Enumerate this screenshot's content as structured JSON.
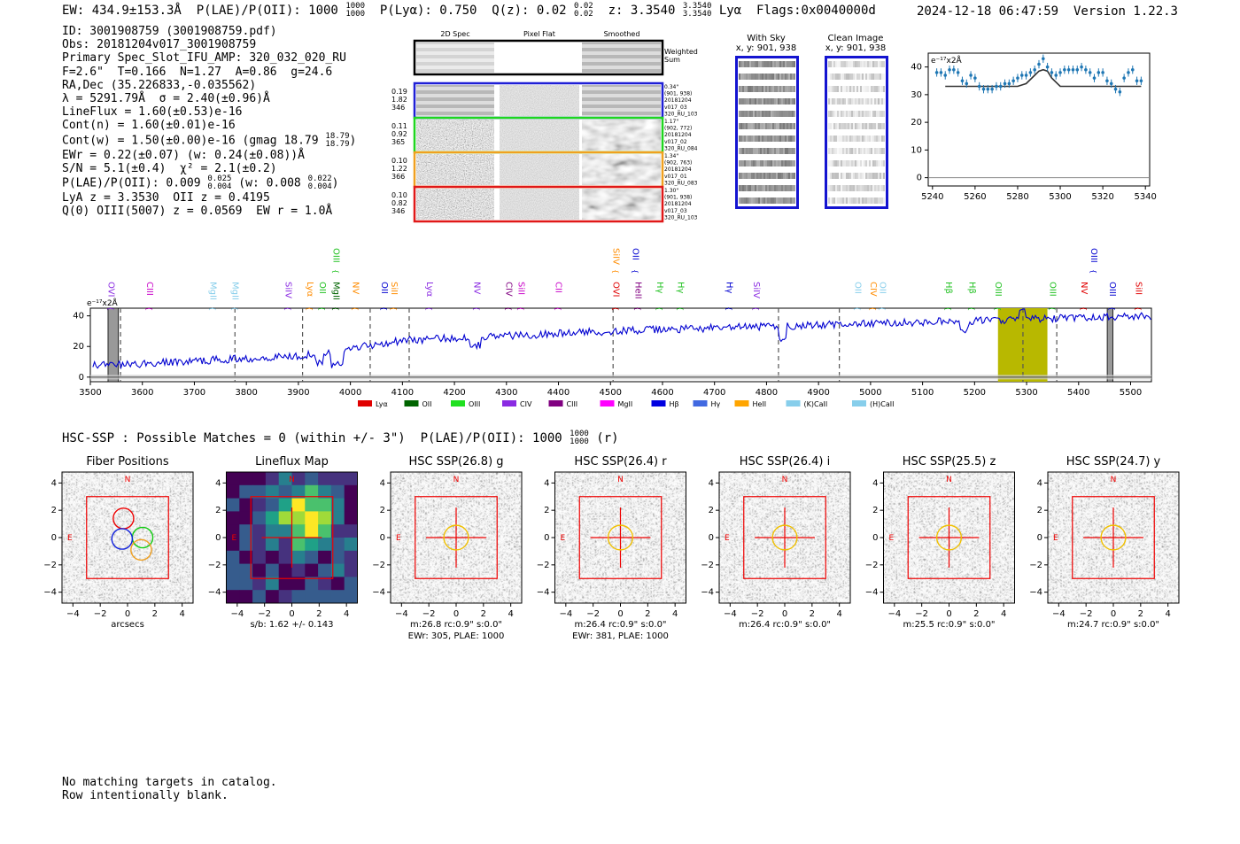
{
  "header": {
    "ew": "EW: 434.9±153.3Å",
    "plae_label": "P(LAE)/P(OII): 1000",
    "plae_hi": "1000",
    "plae_lo": "1000",
    "plya": "P(Lyα): 0.750",
    "qz_label": "Q(z): 0.02",
    "qz_hi": "0.02",
    "qz_lo": "0.02",
    "z_label": "z: 3.3540",
    "z_hi": "3.3540",
    "z_lo": "3.3540",
    "line_name": "Lyα",
    "flags": "Flags:0x0040000d",
    "date": "2024-12-18 06:47:59",
    "version": "Version 1.22.3"
  },
  "info": {
    "id": "ID: 3001908759 (3001908759.pdf)",
    "obs": "Obs: 20181204v017_3001908759",
    "primary": "Primary Spec_Slot_IFU_AMP: 320_032_020_RU",
    "fparams": "F=2.6\"  T=0.166  N=1.27  A=0.86  g=24.6",
    "radec": "RA,Dec (35.226833,-0.035562)",
    "lambda": "λ = 5291.79Å  σ = 2.40(±0.96)Å",
    "lineflux": "LineFlux = 1.60(±0.53)e-16",
    "contn": "Cont(n) = 1.60(±0.01)e-16",
    "contw": "Cont(w) = 1.50(±0.00)e-16 (gmag 18.79",
    "contw_hi": "18.79",
    "contw_lo": "18.79",
    "ewr": "EWr = 0.22(±0.07) (w: 0.24(±0.08))Å",
    "sn": "S/N = 5.1(±0.4)  χ² = 2.1(±0.2)",
    "plae": "P(LAE)/P(OII): 0.009",
    "plae_hi": "0.025",
    "plae_lo": "0.004",
    "plae_w": "(w: 0.008",
    "plae_w_hi": "0.022",
    "plae_w_lo": "0.004",
    "lya_z": "LyA z = 3.3530  OII z = 0.4195",
    "q0": "Q(0) OIII(5007) z = 0.0569  EW r = 1.0Å"
  },
  "cutouts": {
    "col_headers": [
      "2D Spec",
      "Pixel Flat",
      "Smoothed"
    ],
    "weighted_sum": "Weighted Sum",
    "rows": [
      {
        "color": "#1f1fd6",
        "left": [
          "0.19",
          "1.82",
          "346"
        ],
        "right": [
          "0.34\"",
          "(901, 938)",
          "20181204",
          "v017_03",
          "320_RU_103"
        ]
      },
      {
        "color": "#1fd61f",
        "left": [
          "0.11",
          "0.92",
          "365"
        ],
        "right": [
          "1.17\"",
          "(902, 772)",
          "20181204",
          "v017_02",
          "320_RU_084"
        ]
      },
      {
        "color": "#f0a020",
        "left": [
          "0.10",
          "1.22",
          "366"
        ],
        "right": [
          "1.34\"",
          "(902, 763)",
          "20181204",
          "v017_01",
          "320_RU_083"
        ]
      },
      {
        "color": "#e01818",
        "left": [
          "0.10",
          "0.82",
          "346"
        ],
        "right": [
          "1.30\"",
          "(901, 938)",
          "20181204",
          "v017_03",
          "320_RU_103"
        ]
      }
    ],
    "with_sky_title": "With Sky",
    "with_sky_xy": "x, y: 901, 938",
    "clean_title": "Clean Image",
    "clean_xy": "x, y: 901, 938"
  },
  "chart_data": [
    {
      "type": "scatter",
      "title": "",
      "ylabel": "e⁻¹⁷x2Å",
      "xlim": [
        5238,
        5342
      ],
      "ylim": [
        -3,
        45
      ],
      "xticks": [
        5240,
        5260,
        5280,
        5300,
        5320,
        5340
      ],
      "yticks": [
        0,
        10,
        20,
        30,
        40
      ],
      "points": {
        "x": [
          5242,
          5244,
          5246,
          5248,
          5250,
          5252,
          5254,
          5256,
          5258,
          5260,
          5262,
          5264,
          5266,
          5268,
          5270,
          5272,
          5274,
          5276,
          5278,
          5280,
          5282,
          5284,
          5286,
          5288,
          5290,
          5292,
          5294,
          5296,
          5298,
          5300,
          5302,
          5304,
          5306,
          5308,
          5310,
          5312,
          5314,
          5316,
          5318,
          5320,
          5322,
          5324,
          5326,
          5328,
          5330,
          5332,
          5334,
          5336,
          5338
        ],
        "y": [
          38,
          38,
          37,
          39,
          39,
          38,
          35,
          34,
          37,
          36,
          33,
          32,
          32,
          32,
          33,
          33,
          34,
          34,
          35,
          36,
          37,
          37,
          38,
          39,
          41,
          43,
          40,
          38,
          37,
          38,
          39,
          39,
          39,
          39,
          40,
          39,
          38,
          36,
          38,
          38,
          35,
          34,
          32,
          31,
          36,
          38,
          39,
          35,
          35
        ],
        "err": 1.5
      },
      "fit": {
        "x": [
          5246,
          5280,
          5284,
          5288,
          5290,
          5292,
          5294,
          5296,
          5300,
          5338
        ],
        "y": [
          33,
          33,
          34,
          37,
          38.5,
          39,
          38.5,
          36,
          33,
          33
        ]
      }
    },
    {
      "type": "line",
      "ylabel": "e⁻¹⁷x2Å",
      "xlim": [
        3500,
        5540
      ],
      "ylim": [
        -3,
        45
      ],
      "xticks": [
        3500,
        3600,
        3700,
        3800,
        3900,
        4000,
        4100,
        4200,
        4300,
        4400,
        4500,
        4600,
        4700,
        4800,
        4900,
        5000,
        5100,
        5200,
        5300,
        5400,
        5500
      ],
      "yticks": [
        0,
        20,
        40
      ],
      "spectrum_color": "#0000d0",
      "highlight": {
        "x": [
          5245,
          5340
        ],
        "color": "#b8b800"
      },
      "masks": [
        [
          3534,
          3554
        ],
        [
          5455,
          5466
        ]
      ],
      "dashed": [
        3558,
        3778,
        3908,
        4038,
        4113,
        4505,
        4823,
        4940,
        5293,
        5358
      ],
      "line_labels": [
        {
          "name": "OVI",
          "x": 3530,
          "color": "#8a2be2",
          "row": 1
        },
        {
          "name": "CIII",
          "x": 3604,
          "color": "#c800c8",
          "row": 1
        },
        {
          "name": "MgII",
          "x": 3726,
          "color": "#87ceeb",
          "row": 1
        },
        {
          "name": "MgII",
          "x": 3768,
          "color": "#87ceeb",
          "row": 1
        },
        {
          "name": "SiIV",
          "x": 3870,
          "color": "#8a2be2",
          "row": 1
        },
        {
          "name": "Lyα",
          "x": 3912,
          "color": "#ff8c00",
          "row": 1
        },
        {
          "name": "OII",
          "x": 3936,
          "color": "#20c020",
          "row": 1
        },
        {
          "name": "MgII",
          "x": 3962,
          "color": "#006400",
          "row": 1
        },
        {
          "name": "OIII",
          "x": 3962,
          "color": "#20c020",
          "row": 0
        },
        {
          "name": "NV",
          "x": 4000,
          "color": "#ff8c00",
          "row": 1
        },
        {
          "name": "OII",
          "x": 4055,
          "color": "#0000d0",
          "row": 1
        },
        {
          "name": "SiII",
          "x": 4074,
          "color": "#ff8c00",
          "row": 1
        },
        {
          "name": "Lyα",
          "x": 4142,
          "color": "#8a2be2",
          "row": 1
        },
        {
          "name": "NV",
          "x": 4233,
          "color": "#8a2be2",
          "row": 1
        },
        {
          "name": "CIV",
          "x": 4294,
          "color": "#800080",
          "row": 1
        },
        {
          "name": "SiII",
          "x": 4318,
          "color": "#c800c8",
          "row": 1
        },
        {
          "name": "CII",
          "x": 4390,
          "color": "#c800c8",
          "row": 1
        },
        {
          "name": "SiIV",
          "x": 4500,
          "color": "#ff8c00",
          "row": 0
        },
        {
          "name": "OVI",
          "x": 4500,
          "color": "#e00000",
          "row": 1
        },
        {
          "name": "OII",
          "x": 4538,
          "color": "#0000d0",
          "row": 0
        },
        {
          "name": "HeII",
          "x": 4543,
          "color": "#800080",
          "row": 1
        },
        {
          "name": "Hγ",
          "x": 4585,
          "color": "#20c020",
          "row": 1
        },
        {
          "name": "Hγ",
          "x": 4625,
          "color": "#20c020",
          "row": 1
        },
        {
          "name": "Hγ",
          "x": 4718,
          "color": "#0000d0",
          "row": 1
        },
        {
          "name": "SiIV",
          "x": 4770,
          "color": "#8a2be2",
          "row": 1
        },
        {
          "name": "OII",
          "x": 4965,
          "color": "#87ceeb",
          "row": 1
        },
        {
          "name": "CIV",
          "x": 4995,
          "color": "#ff8c00",
          "row": 1
        },
        {
          "name": "OII",
          "x": 5013,
          "color": "#87ceeb",
          "row": 1
        },
        {
          "name": "Hβ",
          "x": 5140,
          "color": "#20c020",
          "row": 1
        },
        {
          "name": "Hβ",
          "x": 5185,
          "color": "#20c020",
          "row": 1
        },
        {
          "name": "OIII",
          "x": 5235,
          "color": "#20c020",
          "row": 1
        },
        {
          "name": "OIII",
          "x": 5340,
          "color": "#20c020",
          "row": 1
        },
        {
          "name": "OIII",
          "x": 5419,
          "color": "#0000d0",
          "row": 0
        },
        {
          "name": "NV",
          "x": 5400,
          "color": "#e00000",
          "row": 1
        },
        {
          "name": "OIII",
          "x": 5455,
          "color": "#0000d0",
          "row": 1
        },
        {
          "name": "SiII",
          "x": 5505,
          "color": "#e00000",
          "row": 1
        }
      ],
      "legend": [
        {
          "name": "Lyα",
          "color": "#e00000"
        },
        {
          "name": "OII",
          "color": "#006400"
        },
        {
          "name": "OIII",
          "color": "#20e020"
        },
        {
          "name": "CIV",
          "color": "#8a2be2"
        },
        {
          "name": "CIII",
          "color": "#800080"
        },
        {
          "name": "MgII",
          "color": "#ff00ff"
        },
        {
          "name": "Hβ",
          "color": "#0000e0"
        },
        {
          "name": "Hγ",
          "color": "#4169e1"
        },
        {
          "name": "HeII",
          "color": "#ffa500"
        },
        {
          "name": "(K)CaII",
          "color": "#87ceeb"
        },
        {
          "name": "(H)CaII",
          "color": "#87ceeb"
        }
      ]
    }
  ],
  "hsc": {
    "title": "HSC-SSP : Possible Matches = 0 (within +/- 3\")  P(LAE)/P(OII): 1000",
    "title_hi": "1000",
    "title_lo": "1000",
    "title_suffix": "(r)",
    "axis_ticks": [
      "−4",
      "−2",
      "0",
      "2",
      "4"
    ],
    "panels": [
      {
        "title": "Fiber Positions",
        "caption1": "arcsecs",
        "caption2": "",
        "kind": "fiber"
      },
      {
        "title": "Lineflux Map",
        "caption1": "s/b: 1.62 +/- 0.143",
        "caption2": "",
        "kind": "flux"
      },
      {
        "title": "HSC SSP(26.8) g",
        "caption1": "m:26.8 rc:0.9\"  s:0.0\"",
        "caption2": "EWr: 305, PLAE: 1000",
        "kind": "hsc"
      },
      {
        "title": "HSC SSP(26.4) r",
        "caption1": "m:26.4 rc:0.9\"  s:0.0\"",
        "caption2": "EWr: 381, PLAE: 1000",
        "kind": "hsc"
      },
      {
        "title": "HSC SSP(26.4) i",
        "caption1": "m:26.4 rc:0.9\"  s:0.0\"",
        "caption2": "",
        "kind": "hsc"
      },
      {
        "title": "HSC SSP(25.5) z",
        "caption1": "m:25.5 rc:0.9\"  s:0.0\"",
        "caption2": "",
        "kind": "hsc"
      },
      {
        "title": "HSC SSP(24.7) y",
        "caption1": "m:24.7 rc:0.9\"  s:0.0\"",
        "caption2": "",
        "kind": "hsc"
      }
    ],
    "north_label": "N",
    "east_label": "E"
  },
  "footer": {
    "line1": "No matching targets in catalog.",
    "line2": "Row intentionally blank."
  }
}
